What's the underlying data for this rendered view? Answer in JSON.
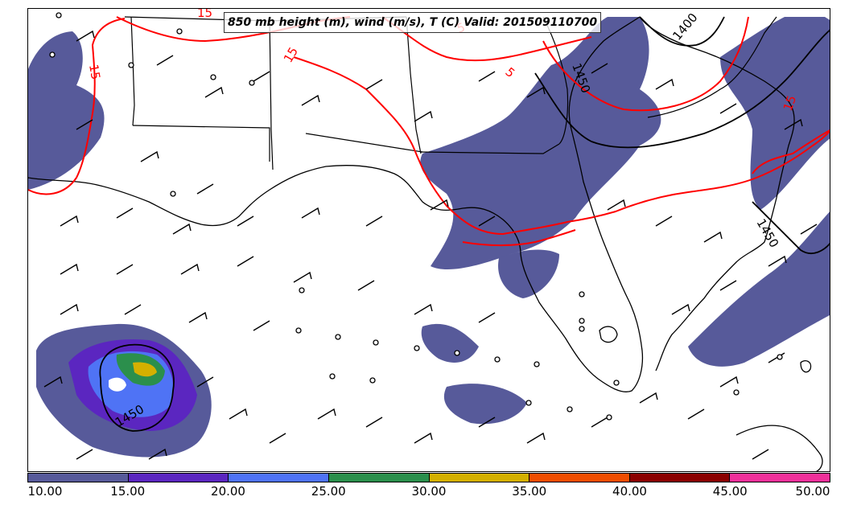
{
  "title": "850 mb height (m), wind (m/s), T (C) Valid: 201509110700",
  "contour_labels": {
    "height": [
      "1400",
      "1450",
      "1450",
      "1450"
    ],
    "temperature": [
      "15",
      "15",
      "15",
      "5",
      "5",
      "15"
    ]
  },
  "colorbar": {
    "ticks": [
      "10.00",
      "15.00",
      "20.00",
      "25.00",
      "30.00",
      "35.00",
      "40.00",
      "45.00",
      "50.00"
    ],
    "colors": [
      "#575a9a",
      "#5b26c0",
      "#4f73f5",
      "#2b8f4c",
      "#d4b000",
      "#f04d00",
      "#8b0000",
      "#f0309a"
    ]
  },
  "colors": {
    "temperature_contour": "#ff0000",
    "height_contour": "#000000",
    "borders": "#000000"
  }
}
